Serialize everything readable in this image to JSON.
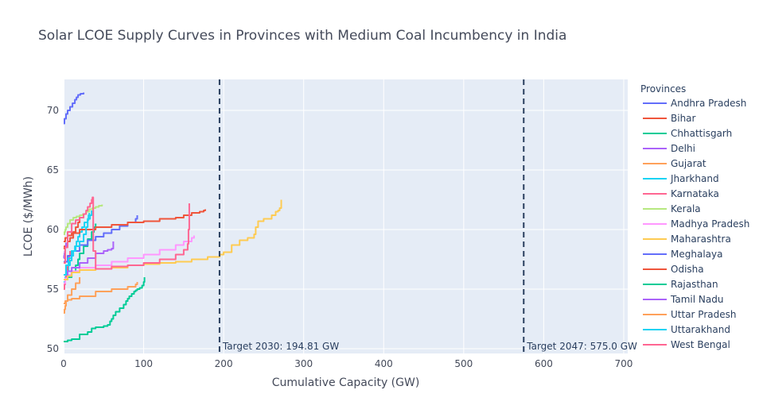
{
  "chart_data": {
    "type": "line",
    "title": "Solar LCOE Supply Curves in Provinces with Medium Coal Incumbency in India",
    "xlabel": "Cumulative Capacity (GW)",
    "ylabel": "LCOE ($/MWh)",
    "xlim": [
      0,
      705
    ],
    "ylim": [
      49.6,
      72.6
    ],
    "xticks": [
      0,
      100,
      200,
      300,
      400,
      500,
      600,
      700
    ],
    "yticks": [
      50,
      55,
      60,
      65,
      70
    ],
    "grid": true,
    "legend_title": "Provinces",
    "legend_position": "right",
    "series": [
      {
        "name": "Andhra Pradesh",
        "color": "#636efa",
        "x": [
          0,
          1,
          3,
          5,
          8,
          11,
          14,
          16,
          18,
          21,
          25
        ],
        "y": [
          68.9,
          69.3,
          69.7,
          70.0,
          70.3,
          70.6,
          70.9,
          71.1,
          71.3,
          71.4,
          71.5
        ]
      },
      {
        "name": "Bihar",
        "color": "#ef553b",
        "x": [
          0,
          1,
          3,
          5,
          8,
          12,
          15,
          18,
          20
        ],
        "y": [
          58.4,
          58.6,
          58.8,
          59.0,
          59.3,
          59.8,
          60.2,
          60.6,
          61.0
        ]
      },
      {
        "name": "Chhattisgarh",
        "color": "#00cc96",
        "x": [
          0,
          5,
          10,
          15,
          18,
          20,
          25,
          30,
          35,
          38,
          40
        ],
        "y": [
          55.8,
          56.0,
          56.5,
          57.0,
          57.5,
          58.0,
          58.6,
          59.2,
          59.8,
          60.2,
          60.5
        ]
      },
      {
        "name": "Delhi",
        "color": "#ab63fa",
        "x": [
          0,
          0.5,
          1,
          1.5,
          2,
          3
        ],
        "y": [
          57.6,
          57.8,
          58.0,
          58.2,
          58.5,
          58.9
        ]
      },
      {
        "name": "Gujarat",
        "color": "#ffa15a",
        "x": [
          0,
          2,
          5,
          10,
          20,
          40,
          60,
          80,
          90,
          92
        ],
        "y": [
          53.8,
          54.0,
          54.1,
          54.2,
          54.4,
          54.8,
          55.0,
          55.2,
          55.4,
          55.6
        ]
      },
      {
        "name": "Jharkhand",
        "color": "#19d3f3",
        "x": [
          0,
          2,
          4,
          6,
          8,
          10,
          12,
          14,
          16,
          18,
          20,
          23,
          26,
          30,
          33,
          35
        ],
        "y": [
          55.6,
          56.0,
          56.5,
          57.0,
          57.4,
          57.8,
          58.2,
          58.6,
          59.0,
          59.4,
          59.8,
          60.2,
          60.6,
          60.9,
          61.2,
          61.6
        ]
      },
      {
        "name": "Karnataka",
        "color": "#ff6692",
        "x": [
          0,
          1,
          2,
          3,
          4,
          5,
          6,
          7,
          8
        ],
        "y": [
          55.0,
          55.4,
          55.8,
          56.2,
          56.6,
          57.0,
          57.4,
          57.8,
          58.2
        ]
      },
      {
        "name": "Kerala",
        "color": "#b6e880",
        "x": [
          0,
          1,
          2,
          3,
          5,
          8,
          12,
          16,
          20,
          24,
          28,
          32,
          36,
          40,
          44,
          48
        ],
        "y": [
          59.6,
          59.8,
          60.0,
          60.2,
          60.5,
          60.8,
          61.0,
          61.1,
          61.2,
          61.3,
          61.5,
          61.7,
          61.8,
          61.9,
          62.0,
          62.1
        ]
      },
      {
        "name": "Madhya Pradesh",
        "color": "#ff97ff",
        "x": [
          0,
          2,
          5,
          10,
          20,
          40,
          60,
          80,
          100,
          120,
          140,
          150,
          160,
          163
        ],
        "y": [
          55.5,
          55.9,
          56.2,
          56.5,
          56.8,
          57.0,
          57.3,
          57.6,
          57.9,
          58.3,
          58.7,
          59.0,
          59.3,
          59.5
        ]
      },
      {
        "name": "Maharashtra",
        "color": "#fecb52",
        "x": [
          0,
          5,
          10,
          20,
          40,
          60,
          80,
          100,
          120,
          140,
          160,
          180,
          195,
          200,
          210,
          220,
          230,
          238,
          240,
          243,
          250,
          260,
          265,
          268,
          270,
          272
        ],
        "y": [
          55.8,
          56.1,
          56.4,
          56.6,
          56.7,
          56.8,
          57.0,
          57.1,
          57.2,
          57.3,
          57.5,
          57.7,
          57.9,
          58.1,
          58.7,
          59.1,
          59.3,
          59.6,
          60.2,
          60.7,
          60.9,
          61.2,
          61.5,
          61.6,
          61.8,
          62.5
        ]
      },
      {
        "name": "Meghalaya",
        "color": "#636efa",
        "x": [
          0,
          5,
          10,
          20,
          30,
          40,
          50,
          60,
          70,
          80,
          90,
          92
        ],
        "y": [
          57.3,
          57.8,
          58.2,
          58.7,
          59.1,
          59.4,
          59.7,
          60.0,
          60.3,
          60.6,
          60.9,
          61.2
        ]
      },
      {
        "name": "Odisha",
        "color": "#ef553b",
        "x": [
          0,
          2,
          5,
          10,
          20,
          40,
          60,
          80,
          100,
          120,
          140,
          150,
          160,
          170,
          175,
          177
        ],
        "y": [
          59.0,
          59.3,
          59.5,
          59.7,
          60.0,
          60.2,
          60.4,
          60.6,
          60.7,
          60.9,
          61.0,
          61.2,
          61.4,
          61.5,
          61.6,
          61.7
        ]
      },
      {
        "name": "Rajasthan",
        "color": "#00cc96",
        "x": [
          0,
          5,
          10,
          20,
          30,
          35,
          40,
          50,
          55,
          58,
          60,
          62,
          65,
          70,
          75,
          78,
          80,
          82,
          85,
          88,
          90,
          92,
          95,
          98,
          100,
          101
        ],
        "y": [
          50.6,
          50.7,
          50.8,
          51.2,
          51.4,
          51.7,
          51.8,
          51.9,
          52.0,
          52.3,
          52.5,
          52.8,
          53.1,
          53.4,
          53.7,
          54.0,
          54.2,
          54.4,
          54.6,
          54.8,
          54.9,
          55.0,
          55.1,
          55.3,
          55.6,
          56.0
        ]
      },
      {
        "name": "Tamil Nadu",
        "color": "#ab63fa",
        "x": [
          0,
          5,
          10,
          20,
          30,
          40,
          50,
          55,
          60,
          62
        ],
        "y": [
          56.2,
          56.5,
          56.8,
          57.2,
          57.6,
          58.0,
          58.2,
          58.3,
          58.4,
          59.0
        ]
      },
      {
        "name": "Uttar Pradesh",
        "color": "#ffa15a",
        "x": [
          0,
          1,
          2,
          3,
          5,
          10,
          15,
          20
        ],
        "y": [
          53.0,
          53.3,
          53.6,
          54.0,
          54.5,
          55.0,
          55.5,
          56.0
        ]
      },
      {
        "name": "Uttarakhand",
        "color": "#19d3f3",
        "x": [
          0,
          3,
          6,
          10,
          15,
          20,
          25,
          28,
          30,
          31,
          32
        ],
        "y": [
          56.2,
          57.0,
          57.6,
          58.2,
          58.6,
          59.0,
          59.6,
          60.2,
          60.8,
          61.2,
          61.4
        ]
      },
      {
        "name": "West Bengal",
        "color": "#ff6692",
        "x": [
          0,
          2,
          5,
          10,
          15,
          20,
          25,
          28,
          30,
          33,
          35,
          36,
          37,
          40,
          60,
          80,
          100,
          120,
          140,
          150,
          155,
          156,
          157
        ],
        "y": [
          57.2,
          58.5,
          59.8,
          60.5,
          60.8,
          61.0,
          61.3,
          61.6,
          61.9,
          62.2,
          62.5,
          62.7,
          58.2,
          56.7,
          56.9,
          57.0,
          57.2,
          57.5,
          57.9,
          58.3,
          58.8,
          60.0,
          62.2
        ]
      }
    ],
    "annotations": [
      {
        "x": 194.81,
        "text": "Target 2030: 194.81 GW",
        "line_style": "dash",
        "color": "#2a3f5f"
      },
      {
        "x": 575.0,
        "text": "Target 2047: 575.0 GW",
        "line_style": "dash",
        "color": "#2a3f5f"
      }
    ]
  }
}
